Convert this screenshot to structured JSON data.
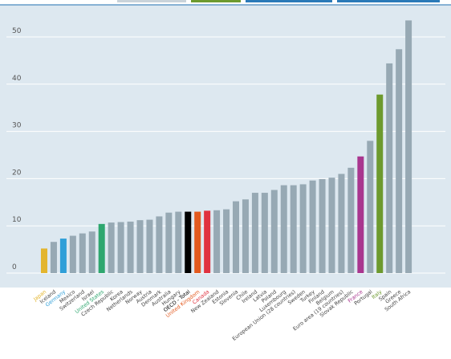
{
  "chart_data": {
    "type": "bar",
    "title": "",
    "xlabel": "",
    "ylabel": "",
    "ylim": [
      0,
      55
    ],
    "yticks": [
      0,
      10,
      20,
      30,
      40,
      50
    ],
    "grid": true,
    "colors": {
      "background": "#dde8f0",
      "default_bar": "#97a9b4",
      "gridline": "#ffffff",
      "default_label": "#444444"
    },
    "categories": [
      "Japan",
      "Iceland",
      "Germany",
      "Mexico",
      "Switzerland",
      "Israel",
      "United States",
      "Czech Republic",
      "Korea",
      "Netherlands",
      "Norway",
      "Austria",
      "Denmark",
      "Australia",
      "Hungary",
      "OECD - Total",
      "United Kingdom",
      "Canada",
      "New Zealand",
      "Estonia",
      "Slovenia",
      "Chile",
      "Ireland",
      "Latvia",
      "Poland",
      "Luxembourg",
      "European Union (28 countries)",
      "Sweden",
      "Turkey",
      "Finland",
      "Belgium",
      "Euro area (19 countries)",
      "Slovak Republic",
      "France",
      "Portugal",
      "Italy",
      "Spain",
      "Greece",
      "South Africa"
    ],
    "values": [
      5.2,
      6.6,
      7.3,
      7.9,
      8.4,
      8.8,
      10.4,
      10.7,
      10.8,
      10.9,
      11.2,
      11.3,
      12.0,
      12.8,
      13.0,
      13.0,
      13.0,
      13.2,
      13.3,
      13.5,
      15.2,
      15.6,
      17.0,
      17.0,
      17.6,
      18.6,
      18.6,
      18.8,
      19.6,
      19.9,
      20.2,
      21.0,
      22.3,
      24.7,
      28.0,
      37.8,
      44.4,
      47.4,
      53.5
    ],
    "highlights": {
      "Japan": "#e3b52e",
      "Germany": "#2f9fd8",
      "United States": "#2ea76f",
      "OECD - Total": "#000000",
      "United Kingdom": "#e35a1f",
      "Canada": "#e0323f",
      "France": "#a9368f",
      "Italy": "#6d9a2e"
    }
  }
}
